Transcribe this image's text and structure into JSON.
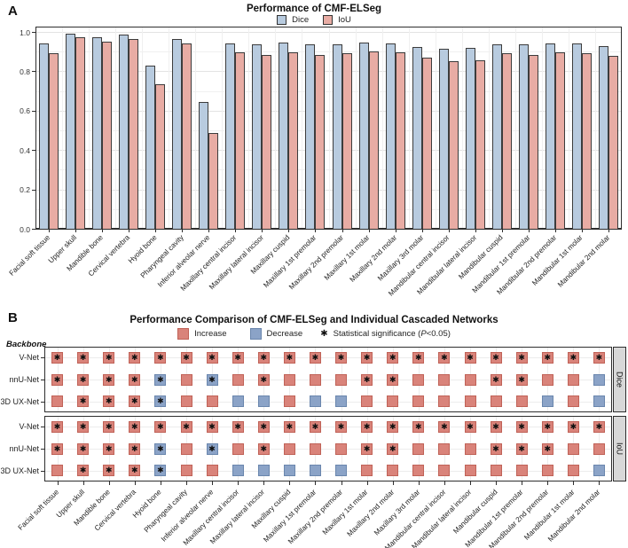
{
  "panel_a": {
    "label": "A",
    "y_tick_labels": [
      "0.0",
      "0.2",
      "0.4",
      "0.6",
      "0.8",
      "1.0"
    ]
  },
  "panel_b": {
    "label": "B",
    "backbone_header": "Backbone",
    "legend_sig": {
      "symbol": "✱",
      "prefix": "Statistical significance (",
      "p": "P",
      "suffix": "<0.05)"
    }
  },
  "colors": {
    "dice_bar": "#b8cbdf",
    "iou_bar": "#e8aca4",
    "increase": "#d9837a",
    "increase_border": "#c06257",
    "decrease": "#8ba3c7",
    "decrease_border": "#6a86ad"
  },
  "categories": [
    "Facial soft tissue",
    "Upper skull",
    "Mandible bone",
    "Cervical vertebra",
    "Hyoid bone",
    "Pharyngeal cavity",
    "Inferior alveolar nerve",
    "Maxillary central incisor",
    "Maxillary lateral incisor",
    "Maxillary cuspid",
    "Maxillary 1st premolar",
    "Maxillary 2nd premolar",
    "Maxillary 1st molar",
    "Maxillary 2nd molar",
    "Maxillary 3rd molar",
    "Mandibular central incisor",
    "Mandibular lateral incisor",
    "Mandibular cuspid",
    "Mandibular 1st premolar",
    "Mandibular 2nd premolar",
    "Mandibular 1st molar",
    "Mandibular 2nd molar"
  ],
  "chart_data": [
    {
      "type": "bar",
      "title": "Performance of CMF-ELSeg",
      "xlabel": "",
      "ylabel": "",
      "ylim": [
        0,
        1.0
      ],
      "yticks": [
        0,
        0.2,
        0.4,
        0.6,
        0.8,
        1.0
      ],
      "grid": true,
      "legend_position": "top",
      "categories": [
        "Facial soft tissue",
        "Upper skull",
        "Mandible bone",
        "Cervical vertebra",
        "Hyoid bone",
        "Pharyngeal cavity",
        "Inferior alveolar nerve",
        "Maxillary central incisor",
        "Maxillary lateral incisor",
        "Maxillary cuspid",
        "Maxillary 1st premolar",
        "Maxillary 2nd premolar",
        "Maxillary 1st molar",
        "Maxillary 2nd molar",
        "Maxillary 3rd molar",
        "Mandibular central incisor",
        "Mandibular lateral incisor",
        "Mandibular cuspid",
        "Mandibular 1st premolar",
        "Mandibular 2nd premolar",
        "Mandibular 1st molar",
        "Mandibular 2nd molar"
      ],
      "series": [
        {
          "name": "Dice",
          "color": "#b8cbdf",
          "values": [
            0.94,
            0.99,
            0.975,
            0.985,
            0.83,
            0.965,
            0.645,
            0.94,
            0.935,
            0.945,
            0.935,
            0.935,
            0.945,
            0.94,
            0.925,
            0.915,
            0.92,
            0.935,
            0.935,
            0.94,
            0.94,
            0.93
          ]
        },
        {
          "name": "IoU",
          "color": "#e8aca4",
          "values": [
            0.89,
            0.975,
            0.95,
            0.965,
            0.735,
            0.94,
            0.485,
            0.895,
            0.885,
            0.895,
            0.885,
            0.89,
            0.9,
            0.895,
            0.87,
            0.85,
            0.855,
            0.89,
            0.885,
            0.895,
            0.89,
            0.88
          ]
        }
      ]
    },
    {
      "type": "heatmap",
      "title": "Performance Comparison of CMF-ELSeg and Individual Cascaded Networks",
      "legend": [
        {
          "label": "Increase",
          "color": "#d9837a"
        },
        {
          "label": "Decrease",
          "color": "#8ba3c7"
        }
      ],
      "cell_encoding": "I=increase, D=decrease, * = statistically significant (P<0.05)",
      "row_labels": [
        "V-Net",
        "nnU-Net",
        "3D UX-Net"
      ],
      "facets": [
        {
          "name": "Dice",
          "rows": [
            {
              "backbone": "V-Net",
              "cells": [
                "I*",
                "I*",
                "I*",
                "I*",
                "I*",
                "I*",
                "I*",
                "I*",
                "I*",
                "I*",
                "I*",
                "I*",
                "I*",
                "I*",
                "I*",
                "I*",
                "I*",
                "I*",
                "I*",
                "I*",
                "I*",
                "I*"
              ]
            },
            {
              "backbone": "nnU-Net",
              "cells": [
                "I*",
                "I*",
                "I*",
                "I*",
                "D*",
                "I",
                "D*",
                "I",
                "I*",
                "I",
                "I",
                "I",
                "I*",
                "I*",
                "I",
                "I",
                "I",
                "I*",
                "I*",
                "I",
                "I",
                "D"
              ]
            },
            {
              "backbone": "3D UX-Net",
              "cells": [
                "I",
                "I*",
                "I*",
                "I*",
                "D*",
                "I",
                "I",
                "D",
                "D",
                "I",
                "D",
                "D",
                "I",
                "I",
                "I",
                "I",
                "I",
                "I",
                "I",
                "D",
                "I",
                "D"
              ]
            }
          ]
        },
        {
          "name": "IoU",
          "rows": [
            {
              "backbone": "V-Net",
              "cells": [
                "I*",
                "I*",
                "I*",
                "I*",
                "I*",
                "I*",
                "I*",
                "I*",
                "I*",
                "I*",
                "I*",
                "I*",
                "I*",
                "I*",
                "I*",
                "I*",
                "I*",
                "I*",
                "I*",
                "I*",
                "I*",
                "I*"
              ]
            },
            {
              "backbone": "nnU-Net",
              "cells": [
                "I*",
                "I*",
                "I*",
                "I*",
                "D*",
                "I",
                "D*",
                "I",
                "I*",
                "I",
                "I",
                "I",
                "I*",
                "I*",
                "I",
                "I",
                "I",
                "I*",
                "I*",
                "I*",
                "I",
                "I"
              ]
            },
            {
              "backbone": "3D UX-Net",
              "cells": [
                "I",
                "I*",
                "I*",
                "I*",
                "D*",
                "I",
                "I",
                "D",
                "D",
                "D",
                "D",
                "D",
                "I",
                "I",
                "I",
                "I",
                "I",
                "I",
                "I",
                "I",
                "I",
                "D"
              ]
            }
          ]
        }
      ]
    }
  ]
}
